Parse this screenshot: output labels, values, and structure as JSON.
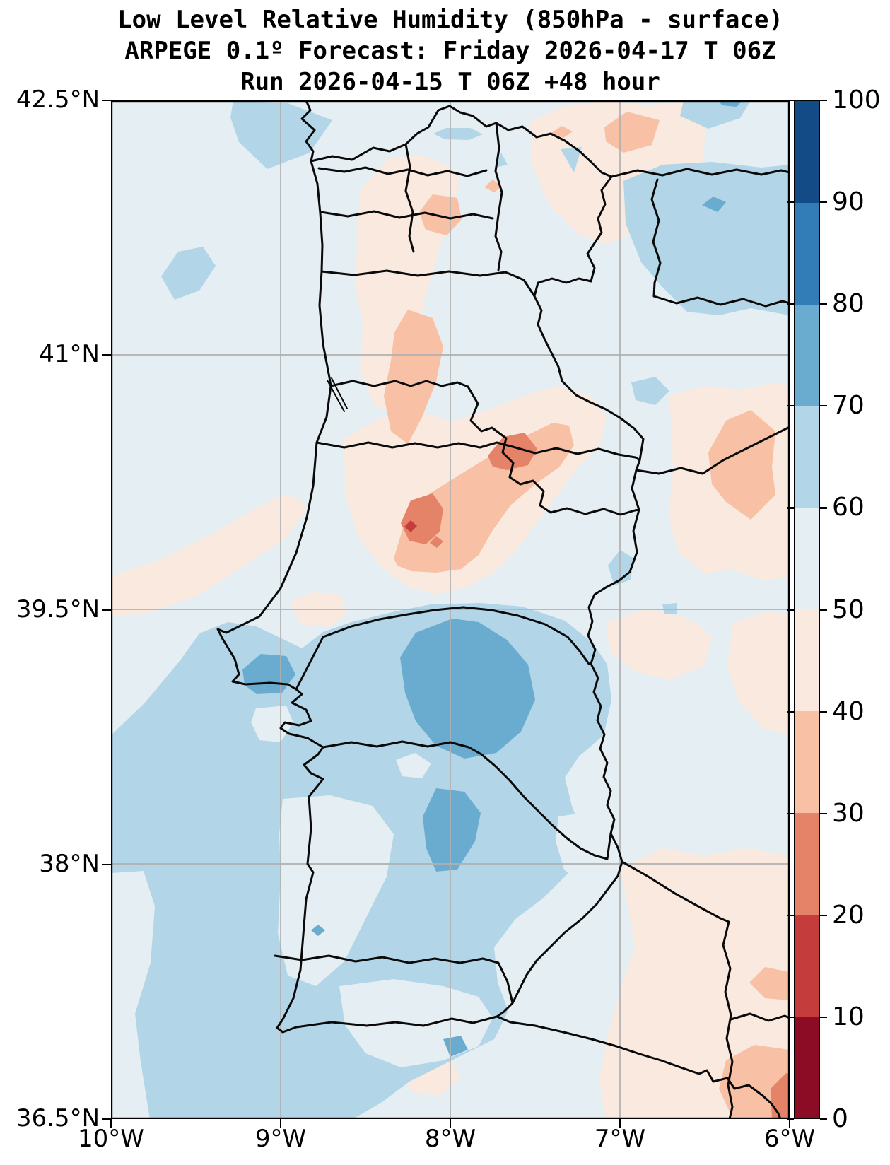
{
  "title": {
    "line1": "Low Level Relative Humidity (850hPa - surface)",
    "line2": "ARPEGE 0.1º Forecast: Friday 2026-04-17 T 06Z",
    "line3": "Run 2026-04-15 T 06Z +48 hour"
  },
  "axes": {
    "lat_ticks": [
      "42.5°N",
      "41°N",
      "39.5°N",
      "38°N",
      "36.5°N"
    ],
    "lon_ticks": [
      "10°W",
      "9°W",
      "8°W",
      "7°W",
      "6°W"
    ]
  },
  "colorbar": {
    "tick_labels": [
      "100",
      "90",
      "80",
      "70",
      "60",
      "50",
      "40",
      "30",
      "20",
      "10",
      "0"
    ],
    "bins_top_to_bottom": [
      {
        "range": "90-100",
        "color": "#134b86"
      },
      {
        "range": "80-90",
        "color": "#327cb8"
      },
      {
        "range": "70-80",
        "color": "#6aacd0"
      },
      {
        "range": "60-70",
        "color": "#b2d5e7"
      },
      {
        "range": "50-60",
        "color": "#e4eef3"
      },
      {
        "range": "40-50",
        "color": "#fae9df"
      },
      {
        "range": "30-40",
        "color": "#f8c0a4"
      },
      {
        "range": "20-30",
        "color": "#e58368"
      },
      {
        "range": "10-20",
        "color": "#c43c3c"
      },
      {
        "range": "0-10",
        "color": "#8c0c25"
      }
    ]
  },
  "map_colors": {
    "grid": "#b0b0b0",
    "boundary": "#0a0a0a",
    "frame": "#000000",
    "background_bin": "50-60"
  },
  "chart_data": {
    "type": "filled_contour_map",
    "variable": "Low level relative humidity (%)",
    "layer": "850hPa - surface",
    "model": "ARPEGE 0.1º",
    "valid_time": "Friday 2026-04-17 T 06Z",
    "run_time": "2026-04-15 T 06Z",
    "lead_time_hours": 48,
    "lon_range": [
      "10°W",
      "6°W"
    ],
    "lat_range": [
      "36.5°N",
      "42.5°N"
    ],
    "contour_levels": [
      0,
      10,
      20,
      30,
      40,
      50,
      60,
      70,
      80,
      90,
      100
    ],
    "colormap": "RdBu discrete, 10 bins (red = dry, blue = humid)",
    "grid_lines": {
      "meridians": [
        "9°W",
        "8°W",
        "7°W"
      ],
      "parallels": [
        "41°N",
        "39.5°N",
        "38°N"
      ]
    },
    "notable_features": [
      {
        "area": "southern Portugal interior (Alentejo, ~38.8-39.3N 7.4-8.2W)",
        "rh_percent": "70-80 core in 60-70 region"
      },
      {
        "area": "Lisbon peninsula vicinity (~38.9N 9.2W)",
        "rh_percent": "70-80 patch"
      },
      {
        "area": "Atlantic off SW coast and Algarve",
        "rh_percent": "60-70"
      },
      {
        "area": "central interior dry cores (~39.9-40.2N 7.4-7.9W)",
        "rh_percent": "20-30 cores, local 10-20 speck"
      },
      {
        "area": "north-central dry band (Viseu/Guarda ~40.6-41.6N)",
        "rh_percent": "30-50"
      },
      {
        "area": "NE Portugal / Zamora border (~41.8-42.4N)",
        "rh_percent": "30-50 patches"
      },
      {
        "area": "NE corner Spain (~41.2-42.1N 6-6.9W)",
        "rh_percent": "60-80"
      },
      {
        "area": "Spanish border east of Castelo Branco (~40.1-40.5N 6-6.5W)",
        "rh_percent": "30-50"
      },
      {
        "area": "SE corner Andalucía (~36.5-37.4N)",
        "rh_percent": "20-50"
      },
      {
        "area": "background field elsewhere",
        "rh_percent": "50-60"
      }
    ]
  }
}
